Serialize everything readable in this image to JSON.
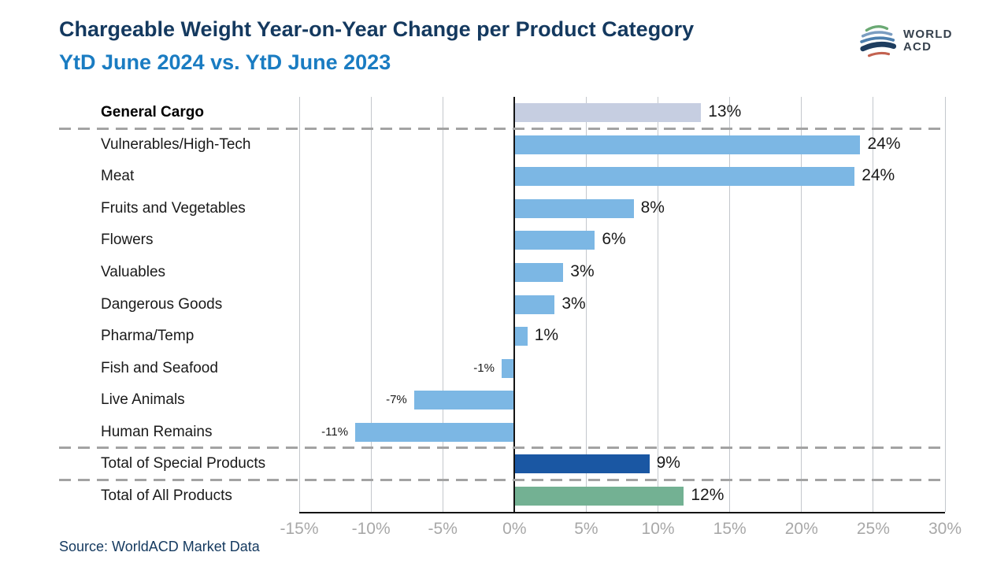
{
  "header": {
    "title": "Chargeable Weight Year-on-Year Change per Product Category",
    "subtitle": "YtD June 2024 vs. YtD June 2023",
    "logo": {
      "line1": "WORLD",
      "line2": "ACD"
    }
  },
  "source": "Source: WorldACD Market Data",
  "palette": {
    "general": "#c6cee1",
    "special": "#7cb7e4",
    "total_special": "#1a57a3",
    "total_all": "#73b193",
    "title": "#14395f",
    "subtitle": "#1a7cc2",
    "text": "#1a1a1a",
    "axis_label": "#a8a8a8",
    "gridline": "#c3c7cc",
    "zero_line": "#141414",
    "separator": "#a3a3a3",
    "logo_text": "#36414d",
    "logo_green": "#6aa973",
    "logo_blue_light": "#7b9dc1",
    "logo_blue": "#4d7fae",
    "logo_navy": "#1e3d5f",
    "logo_coral": "#c36250"
  },
  "chart_data": {
    "type": "bar",
    "orientation": "horizontal",
    "title": "Chargeable Weight Year-on-Year Change per Product Category",
    "subtitle": "YtD June 2024 vs. YtD June 2023",
    "xlabel": "",
    "ylabel": "",
    "xlim": [
      -15,
      30
    ],
    "grid": true,
    "x_ticks": [
      -15,
      -10,
      -5,
      0,
      5,
      10,
      15,
      20,
      25,
      30
    ],
    "x_tick_labels": [
      "-15%",
      "-10%",
      "-5%",
      "0%",
      "5%",
      "10%",
      "15%",
      "20%",
      "25%",
      "30%"
    ],
    "categories": [
      "General Cargo",
      "Vulnerables/High-Tech",
      "Meat",
      "Fruits and Vegetables",
      "Flowers",
      "Valuables",
      "Dangerous Goods",
      "Pharma/Temp",
      "Fish and Seafood",
      "Live Animals",
      "Human Remains",
      "Total of Special Products",
      "Total of All Products"
    ],
    "values": [
      13,
      24,
      24,
      8,
      6,
      3,
      3,
      1,
      -1,
      -7,
      -11,
      9,
      12
    ],
    "rows": [
      {
        "label": "General Cargo",
        "value": 13.0,
        "display": "13%",
        "color": "general",
        "emphasis": true
      },
      {
        "label": "Vulnerables/High-Tech",
        "value": 24.1,
        "display": "24%",
        "color": "special",
        "emphasis": false
      },
      {
        "label": "Meat",
        "value": 23.7,
        "display": "24%",
        "color": "special",
        "emphasis": false
      },
      {
        "label": "Fruits and Vegetables",
        "value": 8.3,
        "display": "8%",
        "color": "special",
        "emphasis": false
      },
      {
        "label": "Flowers",
        "value": 5.6,
        "display": "6%",
        "color": "special",
        "emphasis": false
      },
      {
        "label": "Valuables",
        "value": 3.4,
        "display": "3%",
        "color": "special",
        "emphasis": false
      },
      {
        "label": "Dangerous Goods",
        "value": 2.8,
        "display": "3%",
        "color": "special",
        "emphasis": false
      },
      {
        "label": "Pharma/Temp",
        "value": 0.9,
        "display": "1%",
        "color": "special",
        "emphasis": false
      },
      {
        "label": "Fish and Seafood",
        "value": -0.9,
        "display": "-1%",
        "color": "special",
        "emphasis": false
      },
      {
        "label": "Live Animals",
        "value": -7.0,
        "display": "-7%",
        "color": "special",
        "emphasis": false
      },
      {
        "label": "Human Remains",
        "value": -11.1,
        "display": "-11%",
        "color": "special",
        "emphasis": false
      },
      {
        "label": "Total of Special Products",
        "value": 9.4,
        "display": "9%",
        "color": "total_special",
        "emphasis": false
      },
      {
        "label": "Total of All Products",
        "value": 11.8,
        "display": "12%",
        "color": "total_all",
        "emphasis": false
      }
    ],
    "separators_after": [
      0,
      10,
      11
    ],
    "legend": null
  }
}
